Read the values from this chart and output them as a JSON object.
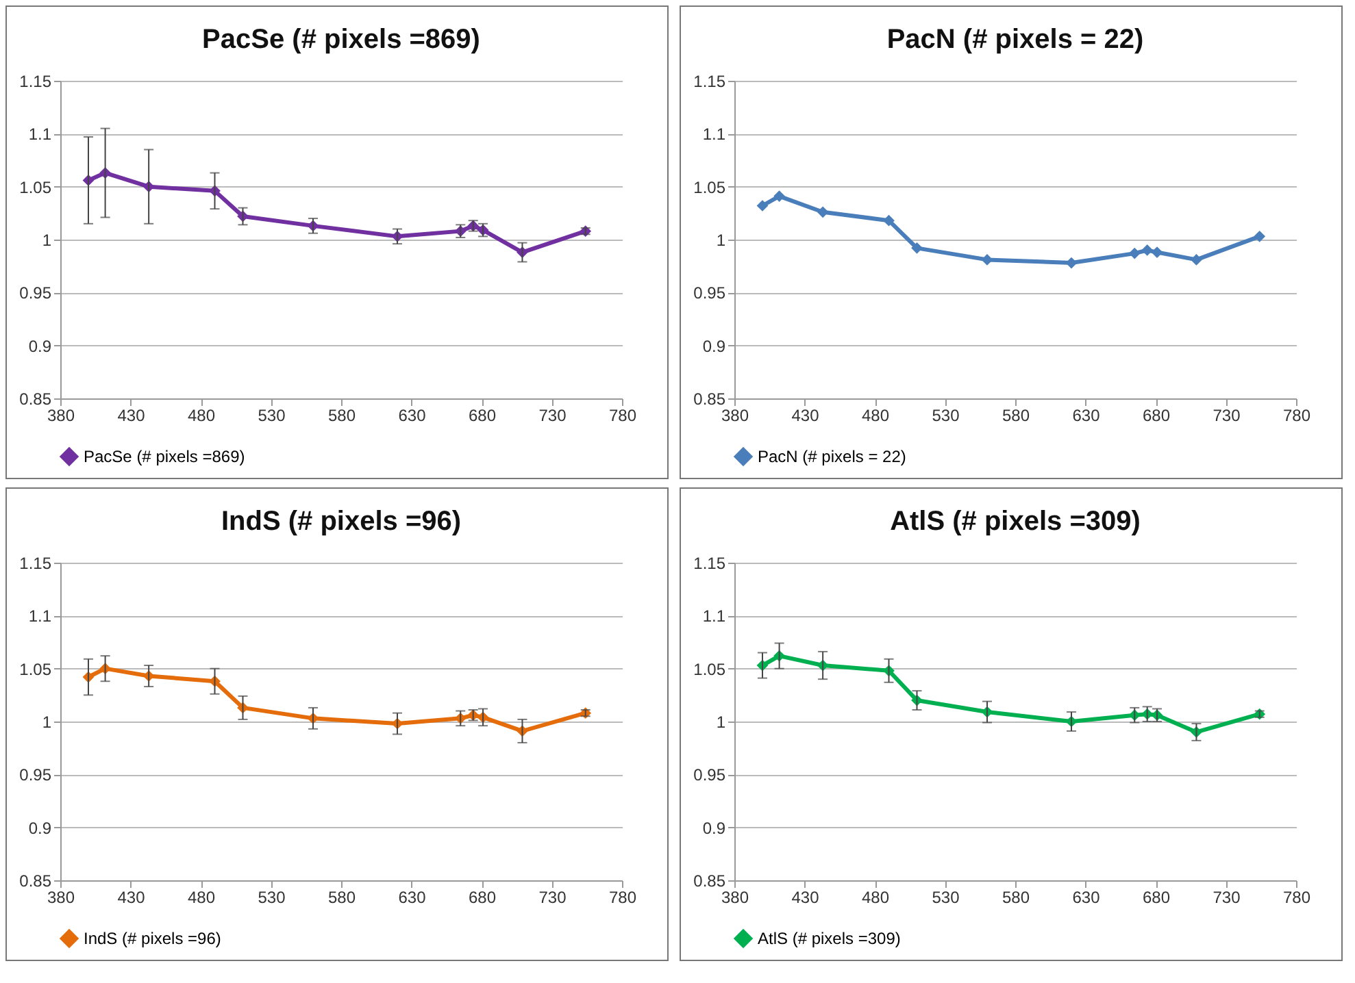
{
  "chart_data": [
    {
      "type": "line",
      "title": "PacSe (# pixels =869)",
      "x": [
        400,
        412,
        443,
        490,
        510,
        560,
        620,
        665,
        674,
        681,
        709,
        754
      ],
      "series": [
        {
          "name": "PacSe (# pixels =869)",
          "color": "#7030a0",
          "values": [
            1.056,
            1.063,
            1.05,
            1.046,
            1.022,
            1.013,
            1.003,
            1.008,
            1.013,
            1.009,
            0.988,
            1.008
          ],
          "errors": [
            0.041,
            0.042,
            0.035,
            0.017,
            0.008,
            0.007,
            0.007,
            0.006,
            0.005,
            0.006,
            0.009,
            0.003
          ]
        }
      ],
      "xlim": [
        380,
        780
      ],
      "xticks": [
        380,
        430,
        480,
        530,
        580,
        630,
        680,
        730,
        780
      ],
      "ylim": [
        0.85,
        1.15
      ],
      "yticks": [
        0.85,
        0.9,
        0.95,
        1,
        1.05,
        1.1,
        1.15
      ],
      "grid": "y",
      "legend": "bottom",
      "marker": "diamond"
    },
    {
      "type": "line",
      "title": "PacN (# pixels = 22)",
      "x": [
        400,
        412,
        443,
        490,
        510,
        560,
        620,
        665,
        674,
        681,
        709,
        754
      ],
      "series": [
        {
          "name": "PacN (# pixels = 22)",
          "color": "#4a7ebb",
          "values": [
            1.032,
            1.041,
            1.026,
            1.018,
            0.992,
            0.981,
            0.978,
            0.987,
            0.99,
            0.988,
            0.981,
            1.003
          ]
        }
      ],
      "xlim": [
        380,
        780
      ],
      "xticks": [
        380,
        430,
        480,
        530,
        580,
        630,
        680,
        730,
        780
      ],
      "ylim": [
        0.85,
        1.15
      ],
      "yticks": [
        0.85,
        0.9,
        0.95,
        1,
        1.05,
        1.1,
        1.15
      ],
      "grid": "y",
      "legend": "bottom",
      "marker": "diamond"
    },
    {
      "type": "line",
      "title": "IndS (# pixels =96)",
      "x": [
        400,
        412,
        443,
        490,
        510,
        560,
        620,
        665,
        674,
        681,
        709,
        754
      ],
      "series": [
        {
          "name": "IndS (# pixels =96)",
          "color": "#e46c0a",
          "values": [
            1.042,
            1.05,
            1.043,
            1.038,
            1.013,
            1.003,
            0.998,
            1.003,
            1.006,
            1.004,
            0.991,
            1.008
          ],
          "errors": [
            0.017,
            0.012,
            0.01,
            0.012,
            0.011,
            0.01,
            0.01,
            0.007,
            0.005,
            0.008,
            0.011,
            0.003
          ]
        }
      ],
      "xlim": [
        380,
        780
      ],
      "xticks": [
        380,
        430,
        480,
        530,
        580,
        630,
        680,
        730,
        780
      ],
      "ylim": [
        0.85,
        1.15
      ],
      "yticks": [
        0.85,
        0.9,
        0.95,
        1,
        1.05,
        1.1,
        1.15
      ],
      "grid": "y",
      "legend": "bottom",
      "marker": "diamond"
    },
    {
      "type": "line",
      "title": "AtlS (# pixels =309)",
      "x": [
        400,
        412,
        443,
        490,
        510,
        560,
        620,
        665,
        674,
        681,
        709,
        754
      ],
      "series": [
        {
          "name": "AtlS (# pixels =309)",
          "color": "#00b050",
          "values": [
            1.053,
            1.062,
            1.053,
            1.048,
            1.02,
            1.009,
            1.0,
            1.006,
            1.007,
            1.006,
            0.99,
            1.007
          ],
          "errors": [
            0.012,
            0.012,
            0.013,
            0.011,
            0.009,
            0.01,
            0.009,
            0.007,
            0.007,
            0.006,
            0.008,
            0.003
          ]
        }
      ],
      "xlim": [
        380,
        780
      ],
      "xticks": [
        380,
        430,
        480,
        530,
        580,
        630,
        680,
        730,
        780
      ],
      "ylim": [
        0.85,
        1.15
      ],
      "yticks": [
        0.85,
        0.9,
        0.95,
        1,
        1.05,
        1.1,
        1.15
      ],
      "grid": "y",
      "legend": "bottom",
      "marker": "diamond"
    }
  ]
}
